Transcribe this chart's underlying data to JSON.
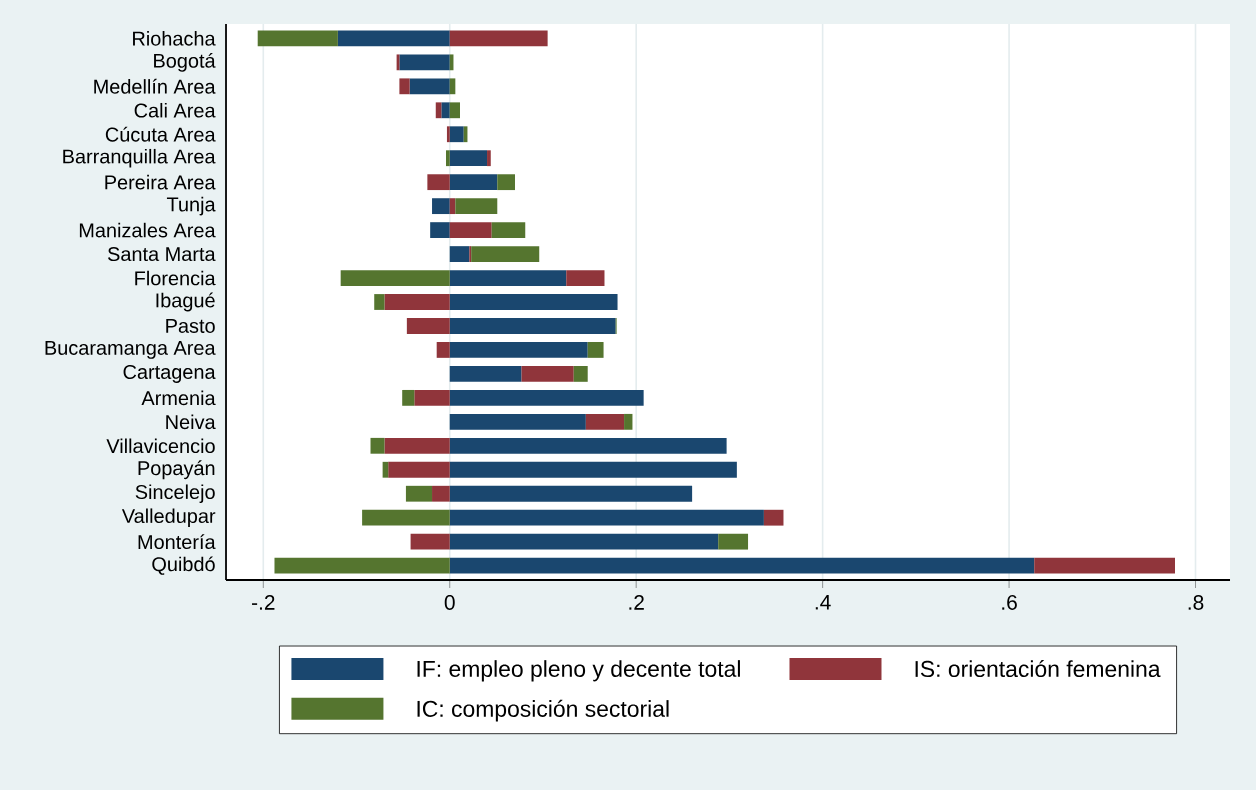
{
  "chart_data": {
    "type": "bar",
    "orientation": "horizontal",
    "stacked": true,
    "categories": [
      "Riohacha",
      "Bogotá",
      "Medellín Area",
      "Cali Area",
      "Cúcuta Area",
      "Barranquilla Area",
      "Pereira Area",
      "Tunja",
      "Manizales Area",
      "Santa Marta",
      "Florencia",
      "Ibagué",
      "Pasto",
      "Bucaramanga Area",
      "Cartagena",
      "Armenia",
      "Neiva",
      "Villavicencio",
      "Popayán",
      "Sincelejo",
      "Valledupar",
      "Montería",
      "Quibdó"
    ],
    "series": [
      {
        "name": "IF: empleo pleno y decente total",
        "color": "#1a476f",
        "values": [
          -0.12,
          -0.054,
          -0.043,
          -0.009,
          0.015,
          0.04,
          0.051,
          -0.019,
          -0.021,
          0.021,
          0.125,
          0.18,
          0.178,
          0.148,
          0.077,
          0.208,
          0.146,
          0.297,
          0.308,
          0.26,
          0.337,
          0.288,
          0.627
        ]
      },
      {
        "name": "IS: orientación femenina",
        "color": "#90353b",
        "values": [
          0.105,
          -0.003,
          -0.011,
          -0.006,
          -0.003,
          0.004,
          -0.024,
          0.006,
          0.045,
          0.002,
          0.041,
          -0.07,
          -0.046,
          -0.014,
          0.056,
          -0.038,
          0.041,
          -0.07,
          -0.066,
          -0.019,
          0.021,
          -0.042,
          0.151
        ]
      },
      {
        "name": "IC: composición sectorial",
        "color": "#55752f",
        "values": [
          -0.086,
          0.004,
          0.006,
          0.011,
          0.004,
          -0.004,
          0.019,
          0.045,
          0.036,
          0.073,
          -0.117,
          -0.011,
          0.001,
          0.017,
          0.015,
          -0.013,
          0.009,
          -0.015,
          -0.006,
          -0.028,
          -0.094,
          0.032,
          -0.188
        ]
      }
    ],
    "xlim": [
      -0.24,
      0.837
    ],
    "xticks": [
      {
        "value": -0.2,
        "label": "-.2"
      },
      {
        "value": 0,
        "label": "0"
      },
      {
        "value": 0.2,
        "label": ".2"
      },
      {
        "value": 0.4,
        "label": ".4"
      },
      {
        "value": 0.6,
        "label": ".6"
      },
      {
        "value": 0.8,
        "label": ".8"
      }
    ],
    "grid": "x",
    "legend": "bottom"
  }
}
